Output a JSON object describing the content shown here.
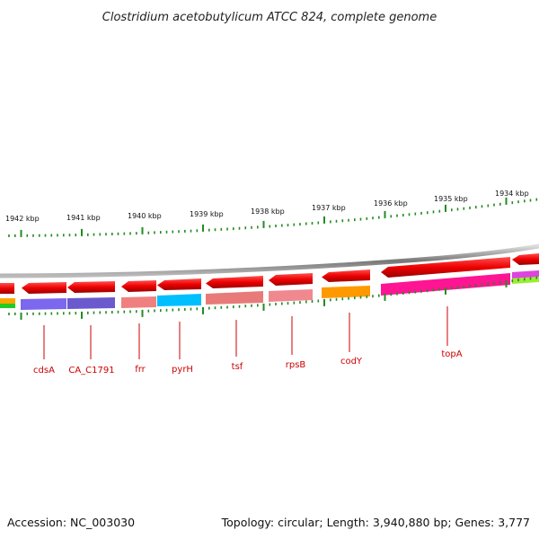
{
  "title": "Clostridium acetobutylicum ATCC 824, complete genome",
  "accession": "Accession: NC_003030",
  "summary": "Topology: circular; Length: 3,940,880 bp; Genes: 3,777",
  "scale_labels": [
    "1942 kbp",
    "1941 kbp",
    "1940 kbp",
    "1939 kbp",
    "1938 kbp",
    "1937 kbp",
    "1936 kbp",
    "1935 kbp",
    "1934 kbp"
  ],
  "genes": [
    {
      "name": "cdsA",
      "color": "#7b68ee"
    },
    {
      "name": "CA_C1791",
      "color": "#7060e0"
    },
    {
      "name": "frr",
      "color": "#f08080"
    },
    {
      "name": "pyrH",
      "color": "#00bfff"
    },
    {
      "name": "tsf",
      "color": "#f07878"
    },
    {
      "name": "rpsB",
      "color": "#f08890"
    },
    {
      "name": "codY",
      "color": "#ff9900"
    },
    {
      "name": "topA",
      "color": "#ff1493"
    }
  ],
  "colors": {
    "strand_arrow": "#ee0000",
    "backbone": "#888888",
    "ticks": "#228b22",
    "label": "#cc0000"
  }
}
